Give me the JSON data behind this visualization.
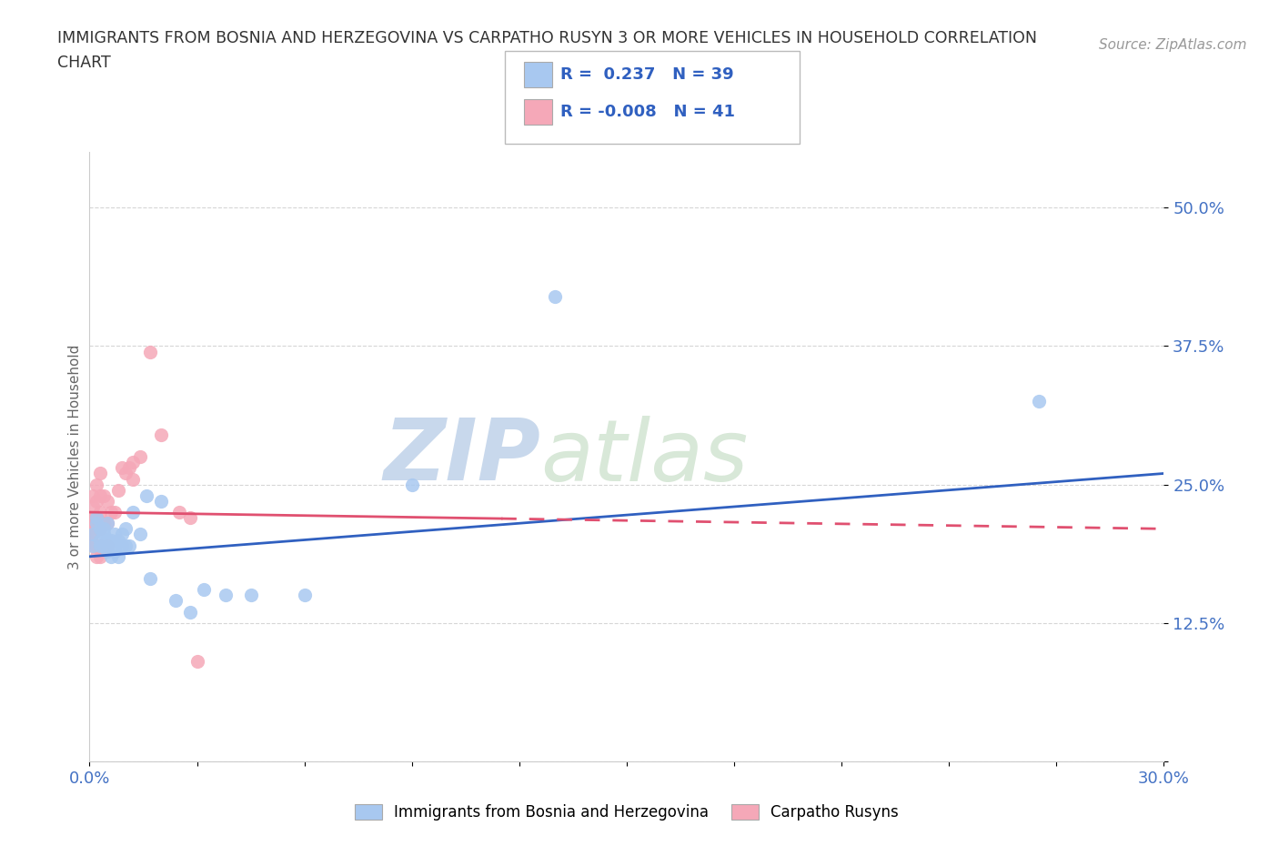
{
  "title_line1": "IMMIGRANTS FROM BOSNIA AND HERZEGOVINA VS CARPATHO RUSYN 3 OR MORE VEHICLES IN HOUSEHOLD CORRELATION",
  "title_line2": "CHART",
  "source_text": "Source: ZipAtlas.com",
  "ylabel": "3 or more Vehicles in Household",
  "xmin": 0.0,
  "xmax": 0.3,
  "ymin": 0.0,
  "ymax": 0.55,
  "yticks": [
    0.0,
    0.125,
    0.25,
    0.375,
    0.5
  ],
  "ytick_labels": [
    "",
    "12.5%",
    "25.0%",
    "37.5%",
    "50.0%"
  ],
  "xtick_labels": [
    "0.0%",
    "",
    "",
    "",
    "",
    "",
    "",
    "",
    "",
    "",
    "30.0%"
  ],
  "r1": 0.237,
  "n1": 39,
  "r2": -0.008,
  "n2": 41,
  "color1": "#A8C8F0",
  "color2": "#F5A8B8",
  "line1_color": "#3060C0",
  "line2_color": "#E05070",
  "legend1": "Immigrants from Bosnia and Herzegovina",
  "legend2": "Carpatho Rusyns",
  "watermark_zip": "ZIP",
  "watermark_atlas": "atlas",
  "scatter1_x": [
    0.001,
    0.001,
    0.002,
    0.002,
    0.003,
    0.003,
    0.003,
    0.004,
    0.004,
    0.004,
    0.005,
    0.005,
    0.005,
    0.006,
    0.006,
    0.007,
    0.007,
    0.007,
    0.008,
    0.008,
    0.009,
    0.009,
    0.01,
    0.01,
    0.011,
    0.012,
    0.014,
    0.016,
    0.017,
    0.02,
    0.024,
    0.028,
    0.032,
    0.038,
    0.045,
    0.06,
    0.09,
    0.13,
    0.265
  ],
  "scatter1_y": [
    0.205,
    0.195,
    0.215,
    0.22,
    0.2,
    0.195,
    0.21,
    0.205,
    0.195,
    0.21,
    0.19,
    0.2,
    0.215,
    0.185,
    0.2,
    0.19,
    0.195,
    0.205,
    0.185,
    0.2,
    0.195,
    0.205,
    0.195,
    0.21,
    0.195,
    0.225,
    0.205,
    0.24,
    0.165,
    0.235,
    0.145,
    0.135,
    0.155,
    0.15,
    0.15,
    0.15,
    0.25,
    0.42,
    0.325
  ],
  "scatter2_x": [
    0.0,
    0.0,
    0.0,
    0.001,
    0.001,
    0.001,
    0.001,
    0.001,
    0.001,
    0.002,
    0.002,
    0.002,
    0.002,
    0.002,
    0.002,
    0.003,
    0.003,
    0.003,
    0.003,
    0.003,
    0.003,
    0.004,
    0.004,
    0.004,
    0.005,
    0.005,
    0.005,
    0.006,
    0.007,
    0.008,
    0.009,
    0.01,
    0.011,
    0.012,
    0.012,
    0.014,
    0.017,
    0.02,
    0.025,
    0.028,
    0.03
  ],
  "scatter2_y": [
    0.2,
    0.21,
    0.22,
    0.195,
    0.205,
    0.215,
    0.22,
    0.23,
    0.24,
    0.185,
    0.195,
    0.21,
    0.22,
    0.235,
    0.25,
    0.185,
    0.195,
    0.21,
    0.225,
    0.24,
    0.26,
    0.19,
    0.215,
    0.24,
    0.195,
    0.215,
    0.235,
    0.225,
    0.225,
    0.245,
    0.265,
    0.26,
    0.265,
    0.255,
    0.27,
    0.275,
    0.37,
    0.295,
    0.225,
    0.22,
    0.09
  ],
  "background_color": "#FFFFFF",
  "grid_color": "#CCCCCC",
  "title_color": "#333333",
  "axis_label_color": "#4472C4"
}
